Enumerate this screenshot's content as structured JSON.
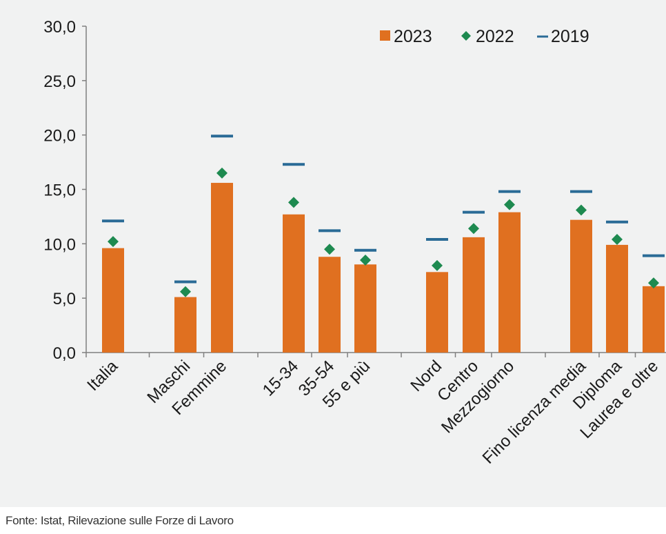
{
  "chart_data": {
    "type": "bar",
    "ylim": [
      0,
      30
    ],
    "yticks": [
      "0,0",
      "5,0",
      "10,0",
      "15,0",
      "20,0",
      "25,0",
      "30,0"
    ],
    "categories": [
      "Italia",
      "Maschi",
      "Femmine",
      "15-34",
      "35-54",
      "55 e più",
      "Nord",
      "Centro",
      "Mezzogiorno",
      "Fino licenza media",
      "Diploma",
      "Laurea e oltre"
    ],
    "series": [
      {
        "name": "2023",
        "mark": "bar",
        "color": "#e07020",
        "values": [
          9.6,
          5.1,
          15.6,
          12.7,
          8.8,
          8.1,
          7.4,
          10.6,
          12.9,
          12.2,
          9.9,
          6.1
        ]
      },
      {
        "name": "2022",
        "mark": "diamond",
        "color": "#1e8a50",
        "values": [
          10.2,
          5.6,
          16.5,
          13.8,
          9.5,
          8.5,
          8.0,
          11.4,
          13.6,
          13.1,
          10.4,
          6.4
        ]
      },
      {
        "name": "2019",
        "mark": "dash",
        "color": "#2a6b96",
        "values": [
          12.1,
          6.5,
          19.9,
          17.3,
          11.2,
          9.4,
          10.4,
          12.9,
          14.8,
          14.8,
          12.0,
          8.9
        ]
      }
    ]
  },
  "source": "Fonte: Istat, Rilevazione sulle Forze di Lavoro"
}
